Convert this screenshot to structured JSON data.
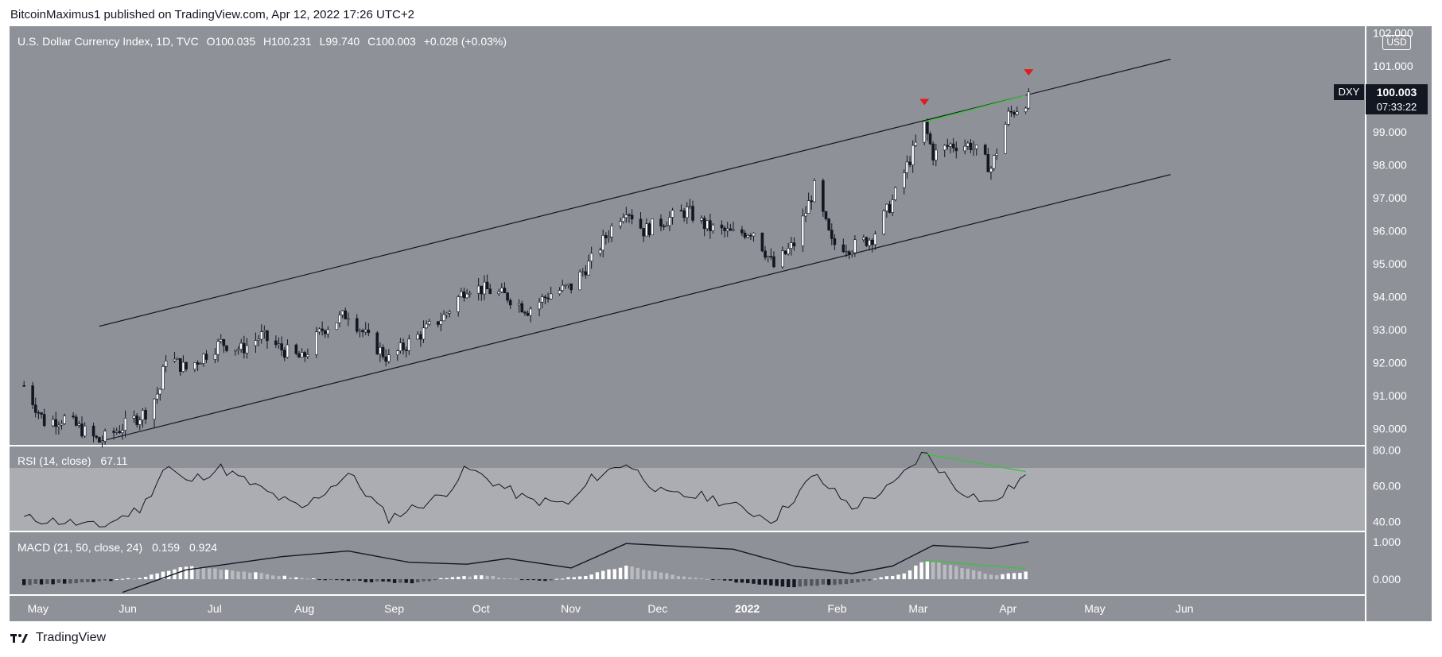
{
  "header": {
    "publisher": "BitcoinMaximus1 published on TradingView.com, Apr 12, 2022 17:26 UTC+2"
  },
  "footer": {
    "brand": "TradingView"
  },
  "legend": {
    "symbol_name": "U.S. Dollar Currency Index, 1D, TVC",
    "open": "O100.035",
    "high": "H100.231",
    "low": "L99.740",
    "close": "C100.003",
    "change": "+0.028 (+0.03%)"
  },
  "ticker": {
    "symbol": "DXY",
    "price": "100.003",
    "timer": "07:33:22",
    "currency": "USD"
  },
  "colors": {
    "panel_bg": "#8f9199",
    "rsi_band": "#abadb3",
    "green_line": "#3fbf3f",
    "red_marker": "#e01b1b",
    "candle_up": "#ffffff",
    "candle_down": "#131722"
  },
  "chart_data": [
    {
      "type": "candlestick",
      "title": "U.S. Dollar Currency Index, 1D, TVC",
      "x_ticks": [
        "May",
        "Jun",
        "Jul",
        "Aug",
        "Sep",
        "Oct",
        "Nov",
        "Dec",
        "2022",
        "Feb",
        "Mar",
        "Apr",
        "May",
        "Jun"
      ],
      "y_ticks": [
        "102.000",
        "101.000",
        "100.000",
        "99.000",
        "98.000",
        "97.000",
        "96.000",
        "95.000",
        "94.000",
        "93.000",
        "92.000",
        "91.000",
        "90.000"
      ],
      "ylim": [
        89.5,
        102.2
      ],
      "close_path": [
        [
          "2021-04-30",
          91.3
        ],
        [
          "2021-05-07",
          90.2
        ],
        [
          "2021-05-14",
          90.3
        ],
        [
          "2021-05-21",
          89.9
        ],
        [
          "2021-05-26",
          89.6
        ],
        [
          "2021-06-04",
          90.1
        ],
        [
          "2021-06-11",
          90.5
        ],
        [
          "2021-06-16",
          91.2
        ],
        [
          "2021-06-18",
          92.2
        ],
        [
          "2021-06-25",
          91.8
        ],
        [
          "2021-07-07",
          92.6
        ],
        [
          "2021-07-14",
          92.4
        ],
        [
          "2021-07-21",
          92.8
        ],
        [
          "2021-07-28",
          92.4
        ],
        [
          "2021-08-04",
          92.1
        ],
        [
          "2021-08-11",
          93.0
        ],
        [
          "2021-08-20",
          93.5
        ],
        [
          "2021-08-27",
          92.7
        ],
        [
          "2021-09-03",
          92.1
        ],
        [
          "2021-09-10",
          92.6
        ],
        [
          "2021-09-22",
          93.4
        ],
        [
          "2021-09-30",
          94.3
        ],
        [
          "2021-10-07",
          94.2
        ],
        [
          "2021-10-14",
          94.0
        ],
        [
          "2021-10-21",
          93.6
        ],
        [
          "2021-10-29",
          94.1
        ],
        [
          "2021-11-05",
          94.3
        ],
        [
          "2021-11-12",
          95.1
        ],
        [
          "2021-11-19",
          96.1
        ],
        [
          "2021-11-24",
          96.7
        ],
        [
          "2021-11-30",
          96.0
        ],
        [
          "2021-12-07",
          96.3
        ],
        [
          "2021-12-15",
          96.6
        ],
        [
          "2021-12-22",
          96.1
        ],
        [
          "2021-12-31",
          95.9
        ],
        [
          "2022-01-07",
          96.0
        ],
        [
          "2022-01-14",
          94.9
        ],
        [
          "2022-01-21",
          95.6
        ],
        [
          "2022-01-28",
          97.3
        ],
        [
          "2022-02-03",
          95.6
        ],
        [
          "2022-02-10",
          95.5
        ],
        [
          "2022-02-17",
          95.8
        ],
        [
          "2022-02-24",
          96.9
        ],
        [
          "2022-03-04",
          98.6
        ],
        [
          "2022-03-07",
          99.2
        ],
        [
          "2022-03-10",
          98.3
        ],
        [
          "2022-03-16",
          98.6
        ],
        [
          "2022-03-23",
          98.6
        ],
        [
          "2022-03-30",
          97.9
        ],
        [
          "2022-04-05",
          99.5
        ],
        [
          "2022-04-12",
          100.0
        ]
      ],
      "annotations": {
        "channel_upper": [
          [
            "2021-05-26",
            93.1
          ],
          [
            "2022-05-31",
            101.2
          ]
        ],
        "channel_lower": [
          [
            "2021-05-26",
            89.6
          ],
          [
            "2022-05-31",
            97.7
          ]
        ],
        "resistance_green": [
          [
            "2022-03-07",
            99.3
          ],
          [
            "2022-04-11",
            100.1
          ]
        ],
        "red_markers": [
          [
            "2022-03-07",
            99.9
          ],
          [
            "2022-04-12",
            100.8
          ]
        ]
      }
    },
    {
      "type": "line",
      "title": "RSI (14, close)",
      "value": "67.11",
      "y_ticks": [
        "80.00",
        "60.00",
        "40.00"
      ],
      "ylim": [
        35,
        82
      ],
      "series": [
        [
          "2021-04-30",
          42
        ],
        [
          "2021-05-14",
          40
        ],
        [
          "2021-05-26",
          37
        ],
        [
          "2021-06-10",
          48
        ],
        [
          "2021-06-18",
          72
        ],
        [
          "2021-06-25",
          62
        ],
        [
          "2021-07-07",
          70
        ],
        [
          "2021-07-21",
          58
        ],
        [
          "2021-08-04",
          47
        ],
        [
          "2021-08-20",
          67
        ],
        [
          "2021-09-03",
          42
        ],
        [
          "2021-09-22",
          55
        ],
        [
          "2021-09-30",
          70
        ],
        [
          "2021-10-21",
          52
        ],
        [
          "2021-11-05",
          50
        ],
        [
          "2021-11-12",
          64
        ],
        [
          "2021-11-24",
          73
        ],
        [
          "2021-12-07",
          55
        ],
        [
          "2021-12-22",
          54
        ],
        [
          "2022-01-14",
          41
        ],
        [
          "2022-01-28",
          66
        ],
        [
          "2022-02-10",
          48
        ],
        [
          "2022-02-24",
          60
        ],
        [
          "2022-03-07",
          79
        ],
        [
          "2022-03-18",
          59
        ],
        [
          "2022-03-30",
          50
        ],
        [
          "2022-04-12",
          67
        ]
      ],
      "band": [
        70,
        30
      ],
      "divergence_line": [
        [
          "2022-03-07",
          78
        ],
        [
          "2022-04-11",
          68
        ]
      ]
    },
    {
      "type": "bar",
      "title": "MACD (21, 50, close, 24)",
      "values_text": [
        "0.159",
        "0.924"
      ],
      "y_ticks": [
        "1.000",
        "0.000"
      ],
      "ylim": [
        -0.4,
        1.25
      ],
      "macd_line": [
        [
          "2021-06-03",
          -0.35
        ],
        [
          "2021-06-25",
          0.25
        ],
        [
          "2021-07-28",
          0.6
        ],
        [
          "2021-08-20",
          0.75
        ],
        [
          "2021-09-10",
          0.45
        ],
        [
          "2021-09-30",
          0.4
        ],
        [
          "2021-10-14",
          0.55
        ],
        [
          "2021-11-05",
          0.3
        ],
        [
          "2021-11-24",
          0.95
        ],
        [
          "2021-12-31",
          0.8
        ],
        [
          "2022-01-21",
          0.35
        ],
        [
          "2022-02-10",
          0.15
        ],
        [
          "2022-02-24",
          0.35
        ],
        [
          "2022-03-10",
          0.9
        ],
        [
          "2022-03-30",
          0.82
        ],
        [
          "2022-04-12",
          1.0
        ]
      ],
      "histogram": [
        [
          "2021-04-30",
          -0.15
        ],
        [
          "2021-05-20",
          -0.1
        ],
        [
          "2021-06-10",
          0.05
        ],
        [
          "2021-06-25",
          0.35
        ],
        [
          "2021-07-10",
          0.25
        ],
        [
          "2021-08-01",
          0.05
        ],
        [
          "2021-08-20",
          -0.05
        ],
        [
          "2021-09-10",
          -0.1
        ],
        [
          "2021-09-25",
          0.05
        ],
        [
          "2021-10-05",
          0.1
        ],
        [
          "2021-10-25",
          -0.05
        ],
        [
          "2021-11-10",
          0.1
        ],
        [
          "2021-11-24",
          0.35
        ],
        [
          "2021-12-15",
          0.05
        ],
        [
          "2022-01-05",
          -0.1
        ],
        [
          "2022-01-20",
          -0.2
        ],
        [
          "2022-02-10",
          -0.1
        ],
        [
          "2022-02-28",
          0.15
        ],
        [
          "2022-03-07",
          0.5
        ],
        [
          "2022-03-18",
          0.35
        ],
        [
          "2022-03-31",
          0.1
        ],
        [
          "2022-04-12",
          0.2
        ]
      ],
      "divergence_line": [
        [
          "2022-03-07",
          0.5
        ],
        [
          "2022-04-11",
          0.28
        ]
      ]
    }
  ]
}
